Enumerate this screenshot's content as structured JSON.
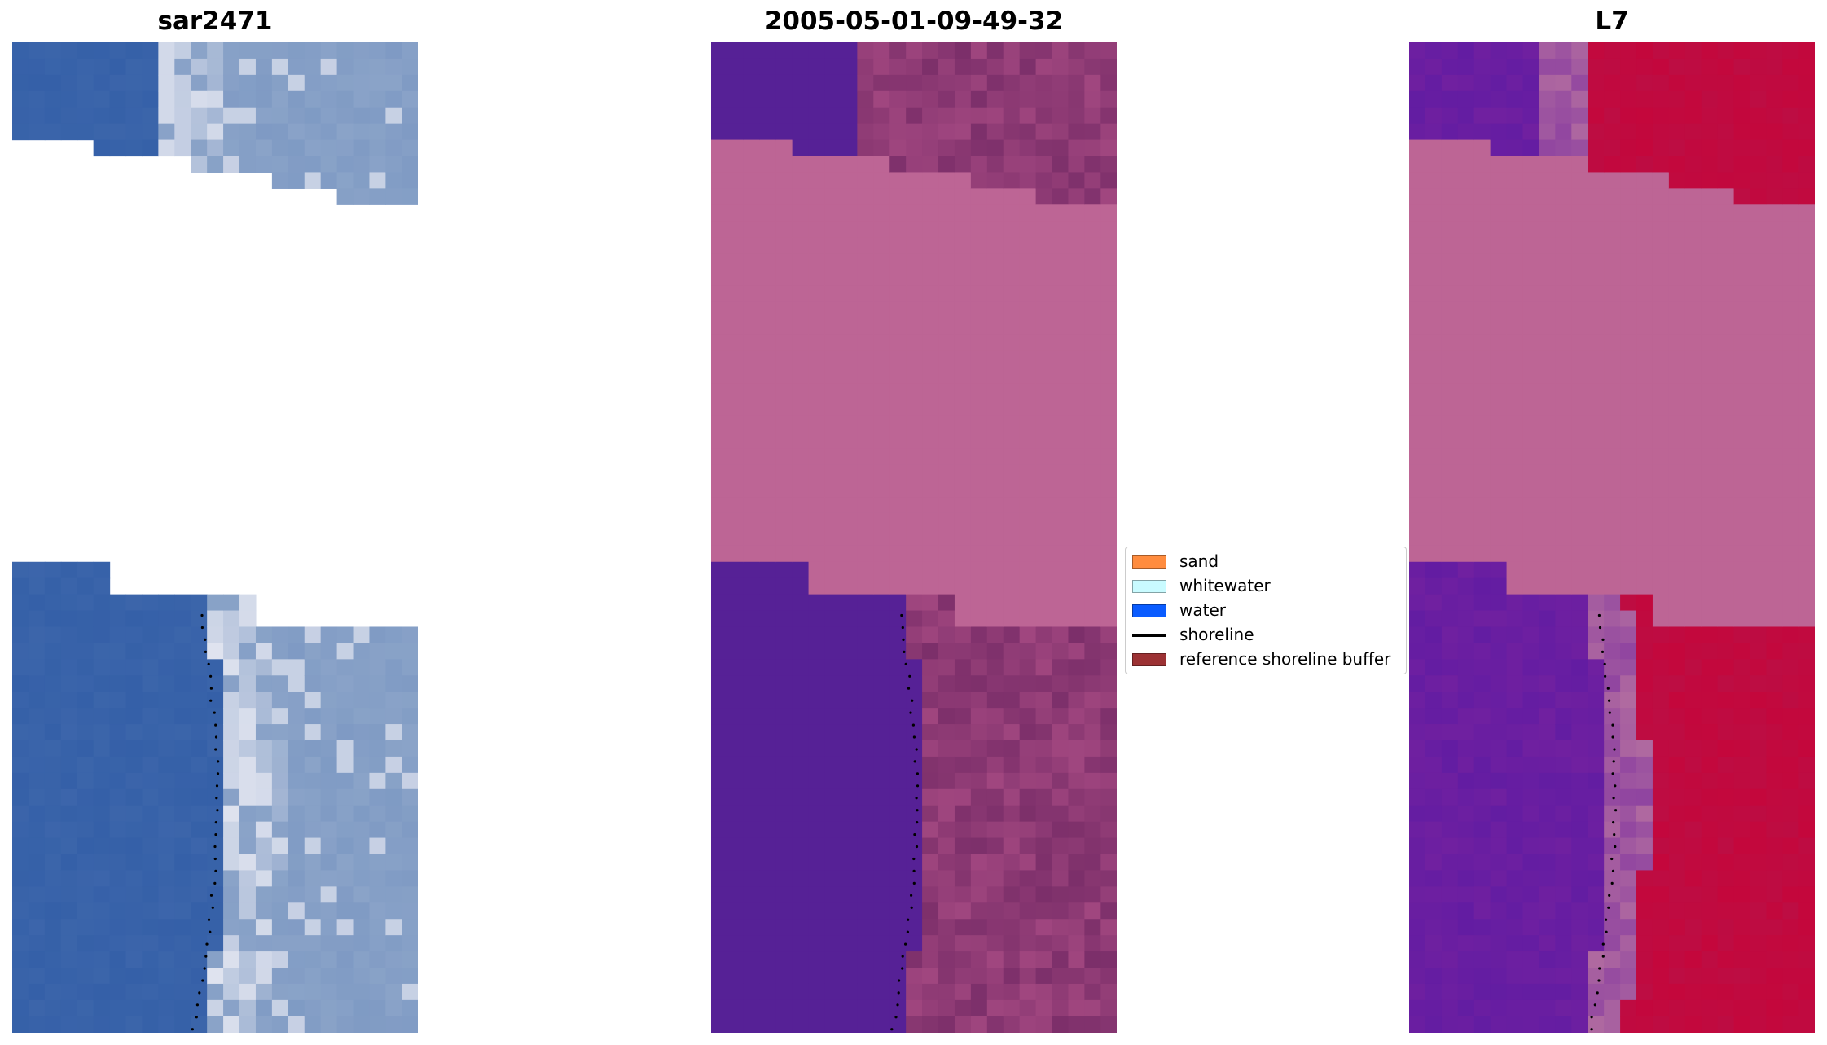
{
  "panels": [
    {
      "title": "sar2471",
      "palette": "rgb"
    },
    {
      "title": "2005-05-01-09-49-32",
      "palette": "classified"
    },
    {
      "title": "L7",
      "palette": "index"
    }
  ],
  "legend": {
    "items": [
      {
        "label": "sand",
        "color": "#ff8c3e",
        "kind": "patch"
      },
      {
        "label": "whitewater",
        "color": "#c9fbff",
        "kind": "patch"
      },
      {
        "label": "water",
        "color": "#0a5cff",
        "kind": "patch"
      },
      {
        "label": "shoreline",
        "color": "#000000",
        "kind": "line"
      },
      {
        "label": "reference shoreline buffer",
        "color": "#9c3234",
        "kind": "patch"
      }
    ]
  },
  "colors": {
    "nodata": "#bd6595",
    "water_class": "#562196",
    "rgb_water": "#3560a8",
    "rgb_land": "#8aa3c8",
    "rgb_whitewater": "#e6e8f2",
    "index_low": "#7020a0",
    "index_high": "#c4073c"
  }
}
